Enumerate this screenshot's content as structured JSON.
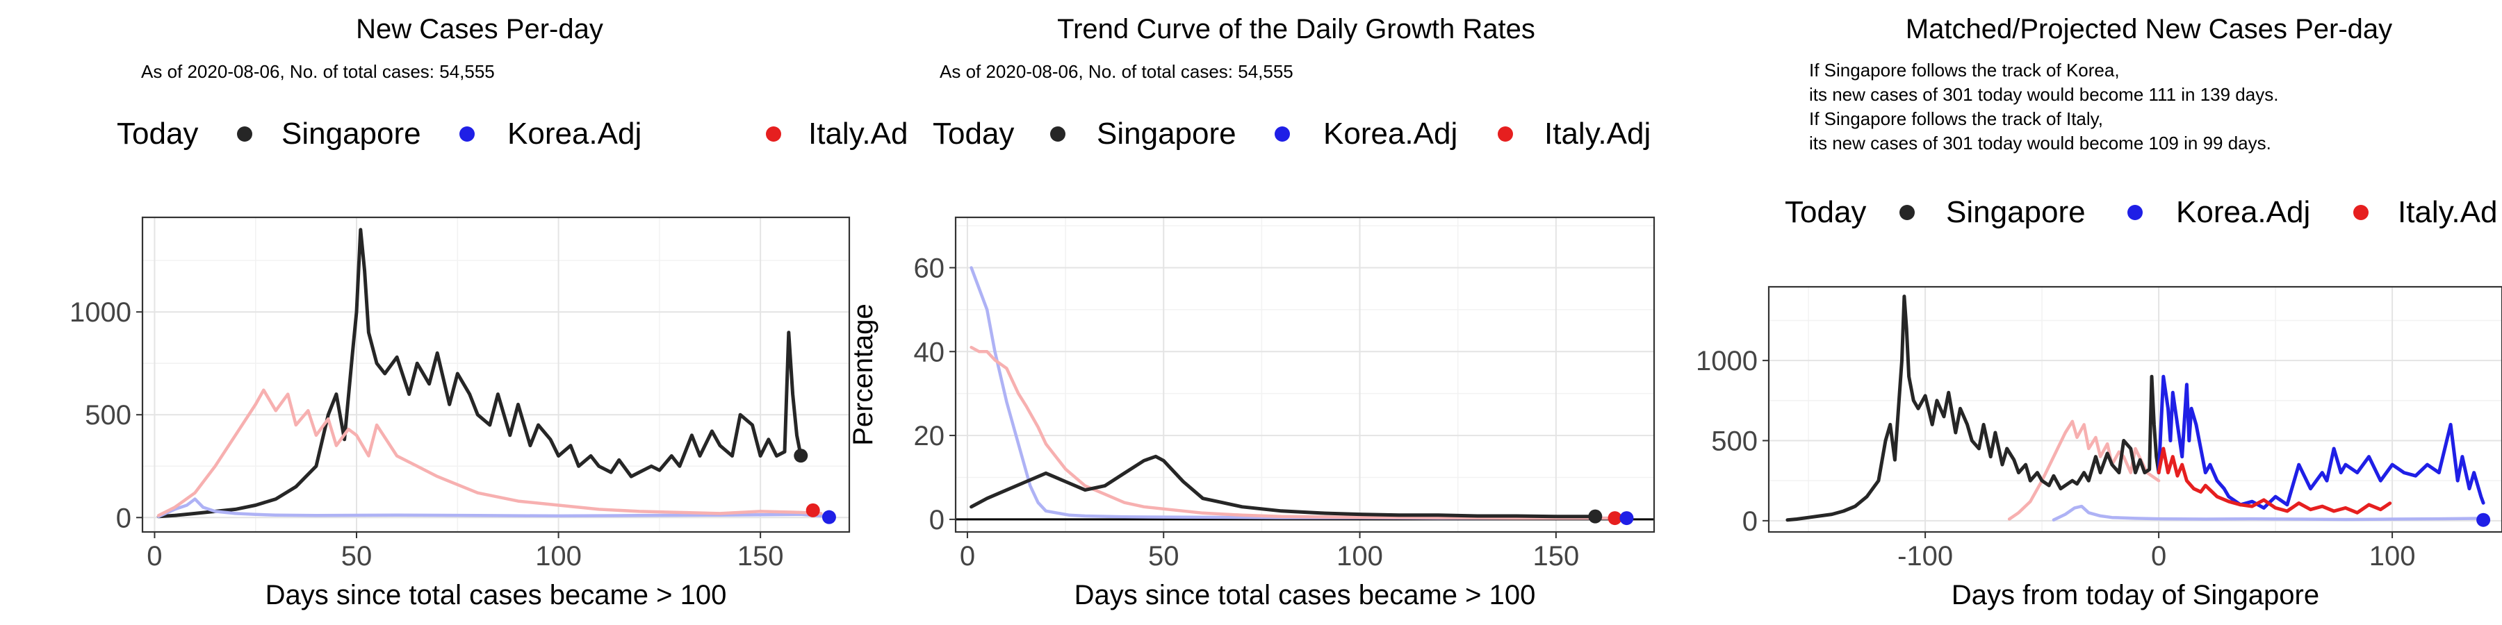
{
  "colors": {
    "singapore": "#262626",
    "korea": "#1f1fe6",
    "italy": "#e61f1f",
    "korea_light": "#aeb2f5",
    "italy_light": "#f7b0b0"
  },
  "chart_data": [
    {
      "type": "line",
      "title": "New Cases Per-day",
      "subtitle": "As of 2020-08-06, No. of total cases: 54,555",
      "xlabel": "Days since total cases became > 100",
      "ylabel": "",
      "xlim": [
        -3,
        172
      ],
      "ylim": [
        -70,
        1460
      ],
      "xticks": [
        0,
        50,
        100,
        150
      ],
      "yticks": [
        0,
        500,
        1000
      ],
      "xtick_labels": [
        "0",
        "50",
        "100",
        "150"
      ],
      "ytick_labels": [
        "0",
        "500",
        "1000"
      ],
      "legend": {
        "position": "top",
        "items": [
          "Today",
          "Singapore",
          "Korea.Adj",
          "Italy.Ad"
        ]
      },
      "series": [
        {
          "name": "Singapore",
          "color": "#262626",
          "emphasis": "dark",
          "x": [
            1,
            5,
            10,
            15,
            20,
            25,
            30,
            35,
            40,
            43,
            45,
            47,
            49,
            50,
            51,
            52,
            53,
            55,
            57,
            60,
            63,
            65,
            68,
            70,
            73,
            75,
            78,
            80,
            83,
            85,
            88,
            90,
            93,
            95,
            98,
            100,
            103,
            105,
            108,
            110,
            113,
            115,
            118,
            120,
            123,
            125,
            128,
            130,
            133,
            135,
            138,
            140,
            143,
            145,
            148,
            150,
            152,
            154,
            156,
            157,
            158,
            159,
            160
          ],
          "y": [
            5,
            10,
            20,
            30,
            40,
            60,
            90,
            150,
            250,
            500,
            600,
            380,
            800,
            1000,
            1400,
            1200,
            900,
            750,
            700,
            780,
            600,
            750,
            650,
            800,
            550,
            700,
            600,
            500,
            450,
            600,
            400,
            550,
            350,
            450,
            380,
            300,
            350,
            250,
            300,
            250,
            220,
            280,
            200,
            220,
            250,
            230,
            300,
            250,
            400,
            300,
            420,
            350,
            300,
            500,
            450,
            300,
            380,
            300,
            320,
            900,
            600,
            400,
            300
          ]
        },
        {
          "name": "Korea.Adj",
          "color": "#aeb2f5",
          "emphasis": "light",
          "x": [
            1,
            5,
            8,
            10,
            12,
            15,
            20,
            25,
            30,
            40,
            60,
            80,
            100,
            120,
            140,
            160,
            167
          ],
          "y": [
            5,
            40,
            60,
            90,
            50,
            30,
            20,
            15,
            12,
            10,
            12,
            10,
            8,
            10,
            12,
            15,
            5
          ]
        },
        {
          "name": "Italy.Adj",
          "color": "#f7b0b0",
          "emphasis": "light",
          "x": [
            1,
            5,
            10,
            15,
            20,
            25,
            27,
            30,
            33,
            35,
            38,
            40,
            43,
            45,
            48,
            50,
            53,
            55,
            60,
            65,
            70,
            80,
            90,
            100,
            110,
            120,
            130,
            140,
            150,
            160,
            165
          ],
          "y": [
            10,
            50,
            120,
            250,
            400,
            550,
            620,
            520,
            600,
            450,
            520,
            400,
            480,
            350,
            430,
            400,
            300,
            450,
            300,
            250,
            200,
            120,
            80,
            60,
            40,
            30,
            25,
            20,
            30,
            25,
            20
          ]
        }
      ],
      "today_points": [
        {
          "name": "Singapore",
          "x": 160,
          "y": 301,
          "color": "#262626"
        },
        {
          "name": "Italy.Adj",
          "x": 163,
          "y": 35,
          "color": "#e61f1f"
        },
        {
          "name": "Korea.Adj",
          "x": 167,
          "y": 2,
          "color": "#1f1fe6"
        }
      ]
    },
    {
      "type": "line",
      "title": "Trend Curve of the Daily Growth Rates",
      "subtitle": "As of 2020-08-06, No. of total cases: 54,555",
      "xlabel": "Days since total cases became > 100",
      "ylabel": "Percentage",
      "xlim": [
        -3,
        175
      ],
      "ylim": [
        -3,
        72
      ],
      "xticks": [
        0,
        50,
        100,
        150
      ],
      "yticks": [
        0,
        20,
        40,
        60
      ],
      "xtick_labels": [
        "0",
        "50",
        "100",
        "150"
      ],
      "ytick_labels": [
        "0",
        "20",
        "40",
        "60"
      ],
      "hline": 0,
      "legend": {
        "position": "top",
        "items": [
          "Today",
          "Singapore",
          "Korea.Adj",
          "Italy.Adj"
        ]
      },
      "series": [
        {
          "name": "Korea.Adj",
          "color": "#aeb2f5",
          "emphasis": "light",
          "x": [
            1,
            3,
            5,
            7,
            10,
            13,
            16,
            18,
            20,
            23,
            26,
            30,
            40,
            60,
            80,
            100,
            120,
            140,
            160,
            168
          ],
          "y": [
            60,
            55,
            50,
            40,
            28,
            18,
            8,
            4,
            2,
            1.5,
            1,
            0.8,
            0.6,
            0.5,
            0.4,
            0.4,
            0.3,
            0.3,
            0.3,
            0.3
          ]
        },
        {
          "name": "Italy.Adj",
          "color": "#f7b0b0",
          "emphasis": "light",
          "x": [
            1,
            3,
            5,
            7,
            10,
            13,
            15,
            18,
            20,
            25,
            30,
            35,
            40,
            45,
            50,
            60,
            70,
            80,
            100,
            120,
            140,
            160,
            165
          ],
          "y": [
            41,
            40,
            40,
            38,
            36,
            30,
            27,
            22,
            18,
            12,
            8,
            6,
            4,
            3,
            2.5,
            1.5,
            1,
            0.7,
            0.5,
            0.4,
            0.3,
            0.3,
            0.3
          ]
        },
        {
          "name": "Singapore",
          "color": "#262626",
          "emphasis": "dark",
          "x": [
            1,
            5,
            10,
            15,
            20,
            25,
            30,
            35,
            40,
            45,
            48,
            50,
            55,
            60,
            65,
            70,
            80,
            90,
            100,
            110,
            120,
            130,
            140,
            150,
            160
          ],
          "y": [
            3,
            5,
            7,
            9,
            11,
            9,
            7,
            8,
            11,
            14,
            15,
            14,
            9,
            5,
            4,
            3,
            2,
            1.5,
            1.2,
            1,
            1,
            0.8,
            0.8,
            0.7,
            0.7
          ]
        }
      ],
      "today_points": [
        {
          "name": "Singapore",
          "x": 160,
          "y": 0.7,
          "color": "#262626"
        },
        {
          "name": "Italy.Adj",
          "x": 165,
          "y": 0.3,
          "color": "#e61f1f"
        },
        {
          "name": "Korea.Adj",
          "x": 168,
          "y": 0.3,
          "color": "#1f1fe6"
        }
      ]
    },
    {
      "type": "line",
      "title": "Matched/Projected New Cases Per-day",
      "subtitle_lines": [
        "If Singapore follows the track of Korea,",
        "its new cases of 301 today would become 111 in 139 days.",
        "If Singapore follows the track of Italy,",
        "its new cases of 301 today would become 109 in 99 days."
      ],
      "xlabel": "Days from today of Singapore",
      "ylabel": "",
      "xlim": [
        -167,
        147
      ],
      "ylim": [
        -70,
        1460
      ],
      "xticks": [
        -100,
        0,
        100
      ],
      "yticks": [
        0,
        500,
        1000
      ],
      "xtick_labels": [
        "-100",
        "0",
        "100"
      ],
      "ytick_labels": [
        "0",
        "500",
        "1000"
      ],
      "legend": {
        "position": "top",
        "items": [
          "Today",
          "Singapore",
          "Korea.Adj",
          "Italy.Ad"
        ]
      },
      "series": [
        {
          "name": "Korea.Adj (past)",
          "color": "#aeb2f5",
          "emphasis": "light",
          "x": [
            -45,
            -40,
            -36,
            -33,
            -30,
            -25,
            -20,
            -10,
            0,
            20,
            40,
            60,
            80,
            100,
            120,
            140
          ],
          "y": [
            5,
            40,
            80,
            90,
            50,
            30,
            20,
            15,
            12,
            10,
            12,
            10,
            8,
            10,
            12,
            15
          ]
        },
        {
          "name": "Italy.Adj (past)",
          "color": "#f7b0b0",
          "emphasis": "light",
          "x": [
            -64,
            -60,
            -55,
            -50,
            -45,
            -40,
            -37,
            -35,
            -32,
            -30,
            -27,
            -25,
            -22,
            -20,
            -17,
            -15,
            -12,
            -10,
            -5,
            0
          ],
          "y": [
            10,
            50,
            120,
            250,
            400,
            550,
            620,
            520,
            600,
            450,
            520,
            400,
            480,
            350,
            430,
            400,
            300,
            450,
            300,
            250
          ]
        },
        {
          "name": "Singapore",
          "color": "#262626",
          "emphasis": "dark",
          "x": [
            -159,
            -155,
            -150,
            -145,
            -140,
            -135,
            -130,
            -125,
            -120,
            -117,
            -115,
            -113,
            -111,
            -110,
            -109,
            -108,
            -107,
            -105,
            -103,
            -100,
            -97,
            -95,
            -92,
            -90,
            -87,
            -85,
            -82,
            -80,
            -77,
            -75,
            -72,
            -70,
            -67,
            -65,
            -62,
            -60,
            -57,
            -55,
            -52,
            -50,
            -47,
            -45,
            -42,
            -40,
            -37,
            -35,
            -32,
            -30,
            -27,
            -25,
            -22,
            -20,
            -17,
            -15,
            -12,
            -10,
            -8,
            -6,
            -4,
            -3,
            -2,
            -1,
            0
          ],
          "y": [
            5,
            10,
            20,
            30,
            40,
            60,
            90,
            150,
            250,
            500,
            600,
            380,
            800,
            1000,
            1400,
            1200,
            900,
            750,
            700,
            780,
            600,
            750,
            650,
            800,
            550,
            700,
            600,
            500,
            450,
            600,
            400,
            550,
            350,
            450,
            380,
            300,
            350,
            250,
            300,
            250,
            220,
            280,
            200,
            220,
            250,
            230,
            300,
            250,
            400,
            300,
            420,
            350,
            300,
            500,
            450,
            300,
            380,
            300,
            320,
            900,
            600,
            400,
            300
          ]
        },
        {
          "name": "Korea.Adj (projected)",
          "color": "#1f1fe6",
          "emphasis": "dark",
          "x": [
            0,
            2,
            4,
            5,
            6,
            8,
            10,
            12,
            13,
            14,
            16,
            18,
            20,
            22,
            25,
            28,
            30,
            35,
            40,
            45,
            50,
            55,
            60,
            65,
            70,
            72,
            75,
            78,
            80,
            85,
            90,
            95,
            100,
            105,
            110,
            115,
            120,
            125,
            128,
            130,
            133,
            135,
            138,
            139
          ],
          "y": [
            301,
            900,
            700,
            500,
            800,
            600,
            400,
            850,
            500,
            700,
            600,
            450,
            300,
            350,
            250,
            200,
            150,
            100,
            120,
            80,
            150,
            100,
            350,
            200,
            300,
            250,
            450,
            300,
            350,
            300,
            400,
            250,
            350,
            300,
            280,
            350,
            300,
            600,
            250,
            400,
            200,
            300,
            150,
            111
          ]
        },
        {
          "name": "Italy.Adj (projected)",
          "color": "#e61f1f",
          "emphasis": "dark",
          "x": [
            0,
            2,
            4,
            6,
            8,
            10,
            12,
            15,
            18,
            20,
            25,
            30,
            35,
            40,
            45,
            50,
            55,
            60,
            65,
            70,
            75,
            80,
            85,
            90,
            95,
            99
          ],
          "y": [
            301,
            450,
            300,
            400,
            280,
            350,
            250,
            200,
            180,
            220,
            150,
            120,
            100,
            90,
            130,
            80,
            60,
            110,
            70,
            90,
            60,
            80,
            50,
            100,
            70,
            109
          ]
        }
      ],
      "today_points": [
        {
          "name": "Korea.Adj",
          "x": 139,
          "y": 5,
          "color": "#1f1fe6"
        }
      ]
    }
  ]
}
